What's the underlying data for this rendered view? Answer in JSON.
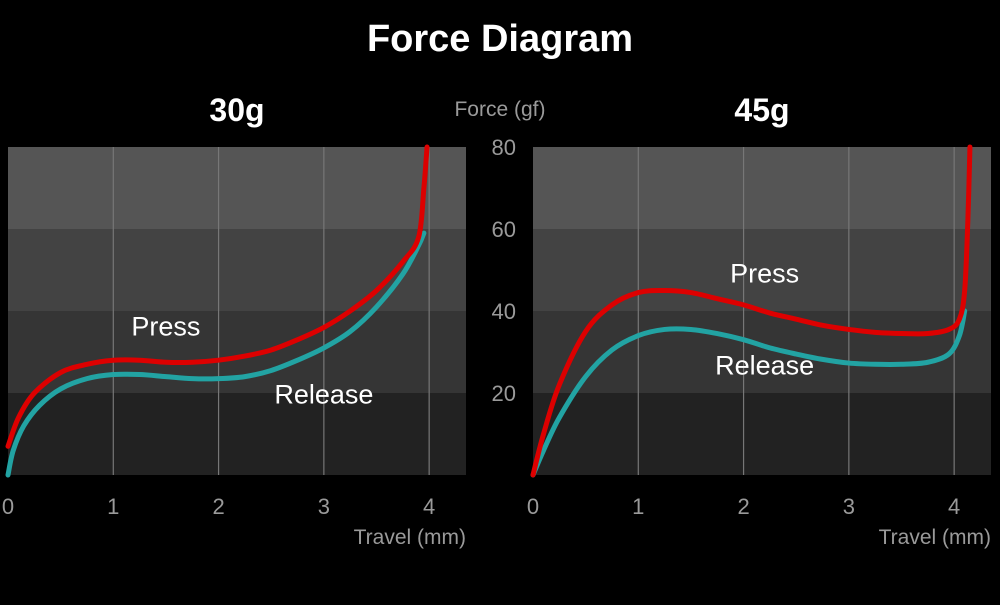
{
  "title": "Force Diagram",
  "y_axis_label": "Force (gf)",
  "colors": {
    "press": "#dd0000",
    "release": "#22a3a3",
    "band_light": "#555555",
    "band_mid": "#434343",
    "band_dark": "#353535",
    "band_darkest": "#222222",
    "grid": "#777777"
  },
  "chart_data": [
    {
      "type": "line",
      "title": "30g",
      "xlabel": "Travel (mm)",
      "ylabel": "Force (gf)",
      "xlim": [
        0,
        4.35
      ],
      "ylim": [
        0,
        80
      ],
      "x_ticks": [
        "0",
        "1",
        "2",
        "3",
        "4"
      ],
      "y_ticks": [
        "20",
        "40",
        "60",
        "80"
      ],
      "grid": true,
      "annotations": [
        {
          "text": "Press",
          "x": 1.5,
          "y": 34
        },
        {
          "text": "Release",
          "x": 3.0,
          "y": 17.5
        }
      ],
      "series": [
        {
          "name": "Press",
          "x": [
            0,
            0.1,
            0.25,
            0.5,
            0.75,
            1.0,
            1.25,
            1.5,
            1.75,
            2.0,
            2.25,
            2.5,
            2.75,
            3.0,
            3.25,
            3.5,
            3.75,
            3.9,
            3.95,
            3.98
          ],
          "y": [
            7,
            14,
            20,
            25,
            27,
            28,
            28,
            27.5,
            27.5,
            28,
            29,
            30.5,
            33,
            36,
            40,
            45,
            52,
            58,
            70,
            80
          ]
        },
        {
          "name": "Release",
          "x": [
            0,
            0.05,
            0.15,
            0.3,
            0.5,
            0.75,
            1.0,
            1.25,
            1.5,
            1.75,
            2.0,
            2.25,
            2.5,
            2.75,
            3.0,
            3.25,
            3.5,
            3.75,
            3.9,
            3.95
          ],
          "y": [
            0,
            6,
            12,
            17,
            21,
            23.5,
            24.5,
            24.5,
            24,
            23.5,
            23.5,
            24,
            25.5,
            28,
            31,
            35,
            41,
            49,
            56,
            59
          ]
        }
      ]
    },
    {
      "type": "line",
      "title": "45g",
      "xlabel": "Travel (mm)",
      "ylabel": "Force (gf)",
      "xlim": [
        0,
        4.35
      ],
      "ylim": [
        0,
        80
      ],
      "x_ticks": [
        "0",
        "1",
        "2",
        "3",
        "4"
      ],
      "y_ticks": [
        "20",
        "40",
        "60",
        "80"
      ],
      "grid": true,
      "annotations": [
        {
          "text": "Press",
          "x": 2.2,
          "y": 47
        },
        {
          "text": "Release",
          "x": 2.2,
          "y": 24.5
        }
      ],
      "series": [
        {
          "name": "Press",
          "x": [
            0,
            0.1,
            0.25,
            0.5,
            0.75,
            1.0,
            1.25,
            1.5,
            1.75,
            2.0,
            2.25,
            2.5,
            2.75,
            3.0,
            3.25,
            3.5,
            3.75,
            3.95,
            4.05,
            4.1,
            4.13,
            4.15
          ],
          "y": [
            0,
            10,
            22,
            35,
            41.5,
            44.5,
            45,
            44.5,
            43,
            41.5,
            39.5,
            38,
            36.5,
            35.5,
            34.8,
            34.5,
            34.5,
            35.5,
            38,
            45,
            62,
            80
          ]
        },
        {
          "name": "Release",
          "x": [
            0,
            0.1,
            0.25,
            0.5,
            0.75,
            1.0,
            1.25,
            1.5,
            1.75,
            2.0,
            2.25,
            2.5,
            2.75,
            3.0,
            3.25,
            3.5,
            3.75,
            3.95,
            4.05,
            4.1
          ],
          "y": [
            0,
            6,
            14,
            24,
            30.5,
            34,
            35.5,
            35.5,
            34.5,
            33,
            31,
            29.5,
            28.2,
            27.3,
            27,
            27,
            27.5,
            29.5,
            34,
            40
          ]
        }
      ]
    }
  ]
}
